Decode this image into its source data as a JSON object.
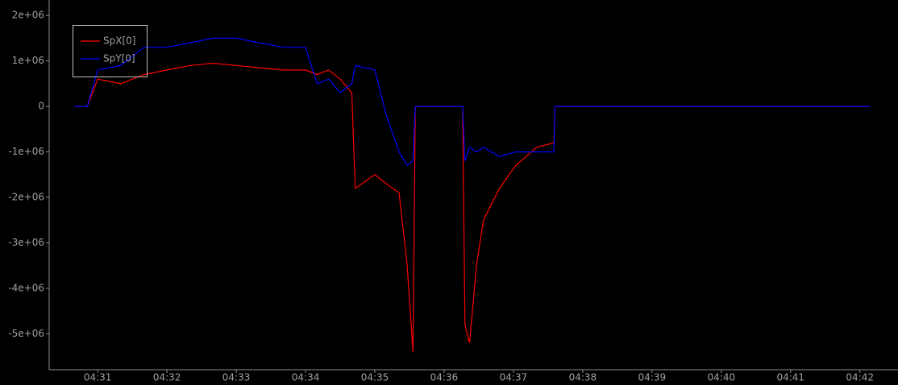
{
  "chart_data": {
    "type": "line",
    "x": [
      "04:30:40",
      "04:30:51",
      "04:31:00",
      "04:31:20",
      "04:31:40",
      "04:32:00",
      "04:32:20",
      "04:32:40",
      "04:33:00",
      "04:33:20",
      "04:33:40",
      "04:34:00",
      "04:34:10",
      "04:34:20",
      "04:34:30",
      "04:34:40",
      "04:34:43",
      "04:35:00",
      "04:35:10",
      "04:35:21",
      "04:35:28",
      "04:35:33",
      "04:35:35",
      "04:36:16",
      "04:36:18",
      "04:36:22",
      "04:36:28",
      "04:36:34",
      "04:36:48",
      "04:37:02",
      "04:37:20",
      "04:37:35",
      "04:37:36",
      "04:42:09"
    ],
    "series": [
      {
        "name": "SpX[0]",
        "color": "#ff0000",
        "values": [
          0,
          0,
          600000,
          500000,
          700000,
          800000,
          900000,
          950000,
          900000,
          850000,
          800000,
          800000,
          700000,
          800000,
          600000,
          300000,
          -1800000,
          -1500000,
          -1700000,
          -1900000,
          -3500000,
          -5400000,
          0,
          0,
          -4800000,
          -5200000,
          -3500000,
          -2500000,
          -1800000,
          -1300000,
          -900000,
          -800000,
          0,
          0
        ]
      },
      {
        "name": "SpY[0]",
        "color": "#0000ff",
        "values": [
          0,
          0,
          800000,
          900000,
          1300000,
          1300000,
          1400000,
          1500000,
          1500000,
          1400000,
          1300000,
          1300000,
          500000,
          600000,
          300000,
          500000,
          900000,
          800000,
          -200000,
          -1000000,
          -1300000,
          -1200000,
          0,
          0,
          -1200000,
          -900000,
          -1000000,
          -900000,
          -1100000,
          -1000000,
          -1000000,
          -1000000,
          0,
          0
        ]
      }
    ],
    "xlim": [
      "04:30:18",
      "04:42:33"
    ],
    "xticks": [
      "04:31",
      "04:32",
      "04:33",
      "04:34",
      "04:35",
      "04:36",
      "04:37",
      "04:38",
      "04:39",
      "04:40",
      "04:41",
      "04:42"
    ],
    "ylim": [
      -5790000,
      2340000
    ],
    "yticks": [
      {
        "value": 2000000,
        "label": "2e+06"
      },
      {
        "value": 1000000,
        "label": "1e+06"
      },
      0,
      {
        "value": -1000000,
        "label": "-1e+06"
      },
      {
        "value": -2000000,
        "label": "-2e+06"
      },
      {
        "value": -3000000,
        "label": "-3e+06"
      },
      {
        "value": -4000000,
        "label": "-4e+06"
      },
      {
        "value": -5000000,
        "label": "-5e+06"
      }
    ],
    "legend": "upper left"
  }
}
